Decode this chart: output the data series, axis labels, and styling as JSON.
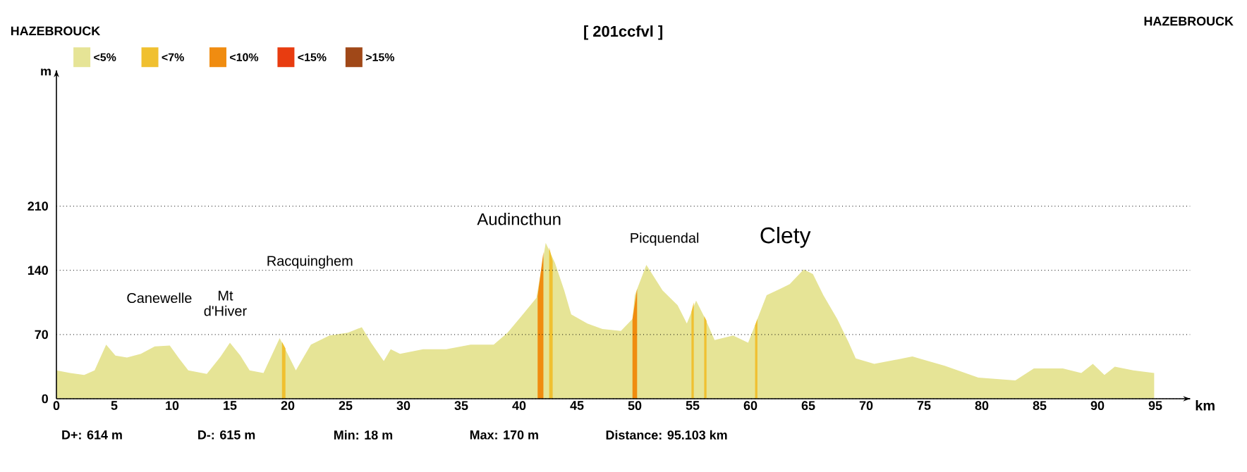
{
  "chart_data": {
    "type": "area",
    "title": "[ 201ccfvl ]",
    "xlabel": "km",
    "ylabel": "m",
    "xlim": [
      0,
      98
    ],
    "ylim": [
      0,
      358
    ],
    "xticks": [
      0,
      5,
      10,
      15,
      20,
      25,
      30,
      35,
      40,
      45,
      50,
      55,
      60,
      65,
      70,
      75,
      80,
      85,
      90,
      95
    ],
    "yticks": [
      0,
      70,
      140,
      210
    ],
    "grid": "y",
    "legend": "top left",
    "series": [
      {
        "name": "<5%",
        "color": "#e6e496",
        "x": [
          0,
          1.2,
          2.4,
          3.3,
          4.3,
          5.1,
          6.1,
          7.3,
          8.5,
          9.8,
          10.6,
          11.4,
          13.0,
          14.2,
          15.0,
          15.9,
          16.7,
          17.9,
          19.3,
          19.9,
          20.7,
          22.0,
          23.6,
          25.2,
          26.4,
          27.2,
          28.3,
          28.9,
          29.7,
          31.7,
          33.7,
          35.8,
          37.8,
          39.0,
          40.2,
          41.5,
          42.3,
          43.1,
          43.9,
          44.5,
          45.9,
          47.2,
          48.8,
          49.8,
          50.0,
          51.0,
          52.4,
          53.7,
          54.5,
          55.3,
          56.1,
          56.9,
          58.5,
          59.8,
          60.6,
          61.4,
          62.6,
          63.4,
          64.6,
          65.4,
          66.3,
          67.5,
          68.5,
          69.1,
          70.7,
          74.0,
          76.8,
          79.7,
          82.9,
          84.5,
          87.0,
          88.6,
          89.6,
          90.6,
          91.5,
          93.1,
          94.9
        ],
        "values": [
          31,
          28,
          26,
          31,
          59,
          47,
          45,
          49,
          57,
          58,
          44,
          31,
          27,
          46,
          61,
          47,
          31,
          28,
          66,
          51,
          31,
          59,
          69,
          72,
          78,
          61,
          41,
          54,
          49,
          54,
          54,
          59,
          59,
          72,
          90,
          110,
          170,
          148,
          118,
          92,
          82,
          76,
          74,
          87,
          113,
          146,
          118,
          102,
          82,
          107,
          87,
          64,
          69,
          61,
          87,
          113,
          120,
          125,
          141,
          136,
          113,
          87,
          61,
          44,
          38,
          46,
          36,
          23,
          20,
          33,
          33,
          28,
          38,
          26,
          35,
          31,
          28
        ]
      },
      {
        "name": "<7%",
        "color": "#f0c030",
        "x": [
          19.5,
          19.8,
          null,
          42.6,
          42.9,
          null,
          54.9,
          55.1,
          null,
          56.0,
          56.2,
          null,
          60.4,
          60.6
        ],
        "values": [
          62,
          55,
          null,
          165,
          150,
          null,
          95,
          105,
          null,
          90,
          85,
          null,
          80,
          87
        ]
      },
      {
        "name": "<10%",
        "color": "#f08c10",
        "x": [
          41.6,
          42.1,
          null,
          49.8,
          50.2
        ],
        "values": [
          112,
          160,
          null,
          87,
          120
        ]
      },
      {
        "name": "<15%",
        "color": "#e83c10"
      },
      {
        "name": ">15%",
        "color": "#a04818"
      }
    ],
    "annotations": [
      "HAZEBROUCK",
      "HAZEBROUCK",
      "D+: 614 m",
      "D-: 615 m",
      "Min: 18 m",
      "Max: 170 m",
      "Distance: 95.103 km",
      "Canewelle",
      "Mt d'Hiver",
      "Racquinghem",
      "Audincthun",
      "Picquendal",
      "Clety"
    ]
  }
}
